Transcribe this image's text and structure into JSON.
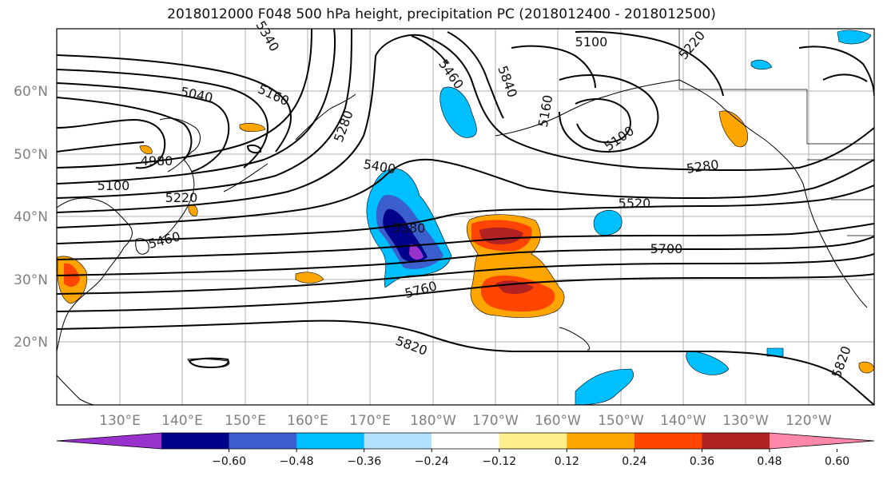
{
  "title": "2018012000 F048 500 hPa height, precipitation PC (2018012400 - 2018012500)",
  "lat_labels": [
    "60°N",
    "50°N",
    "40°N",
    "30°N",
    "20°N"
  ],
  "lon_labels": [
    "130°E",
    "140°E",
    "150°E",
    "160°E",
    "170°E",
    "180°W",
    "170°W",
    "160°W",
    "150°W",
    "140°W",
    "130°W",
    "120°W"
  ],
  "contour_labels": [
    "5100",
    "5040",
    "5160",
    "5460",
    "5840",
    "5220",
    "5280",
    "4980",
    "5100",
    "5220",
    "5400",
    "5460",
    "5580",
    "5520",
    "5700",
    "5760",
    "5820",
    "5820",
    "5280",
    "5100",
    "5160",
    "5340"
  ],
  "colorbar": {
    "ticks": [
      "−0.60",
      "−0.48",
      "−0.36",
      "−0.24",
      "−0.12",
      "0.12",
      "0.24",
      "0.36",
      "0.48",
      "0.60"
    ],
    "colors": [
      "#9932cc",
      "#00008b",
      "#3a5fcd",
      "#00bfff",
      "#b0e2ff",
      "#ffffff",
      "#ffec8b",
      "#ffa500",
      "#ff4500",
      "#b22222",
      "#ff88aa"
    ]
  }
}
